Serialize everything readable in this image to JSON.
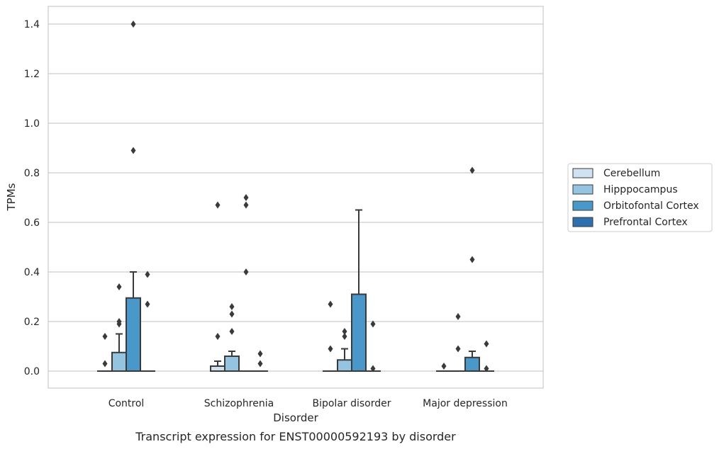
{
  "chart_data": {
    "type": "box",
    "caption": "Transcript expression for ENST00000592193 by disorder",
    "xlabel": "Disorder",
    "ylabel": "TPMs",
    "ylim": [
      -0.07,
      1.47
    ],
    "yticks": [
      0.0,
      0.2,
      0.4,
      0.6,
      0.8,
      1.0,
      1.2,
      1.4
    ],
    "ytick_labels": [
      "0.0",
      "0.2",
      "0.4",
      "0.6",
      "0.8",
      "1.0",
      "1.2",
      "1.4"
    ],
    "grid": "horizontal",
    "legend_placement": "right",
    "categories": [
      "Control",
      "Schizophrenia",
      "Bipolar disorder",
      "Major depression"
    ],
    "series": [
      {
        "name": "Cerebellum",
        "color": "#d0e1f2",
        "boxes": [
          {
            "q1": 0,
            "median": 0,
            "q3": 0,
            "whisker_low": 0,
            "whisker_high": 0,
            "outliers": [
              0.03,
              0.14
            ]
          },
          {
            "q1": 0,
            "median": 0,
            "q3": 0.02,
            "whisker_low": 0,
            "whisker_high": 0.04,
            "outliers": [
              0.14,
              0.67
            ]
          },
          {
            "q1": 0,
            "median": 0,
            "q3": 0,
            "whisker_low": 0,
            "whisker_high": 0,
            "outliers": [
              0.09,
              0.27
            ]
          },
          {
            "q1": 0,
            "median": 0,
            "q3": 0,
            "whisker_low": 0,
            "whisker_high": 0,
            "outliers": [
              0.02
            ]
          }
        ]
      },
      {
        "name": "Hipppocampus",
        "color": "#94c4df",
        "boxes": [
          {
            "q1": 0,
            "median": 0,
            "q3": 0.075,
            "whisker_low": 0,
            "whisker_high": 0.15,
            "outliers": [
              0.19,
              0.2,
              0.34
            ]
          },
          {
            "q1": 0,
            "median": 0,
            "q3": 0.06,
            "whisker_low": 0,
            "whisker_high": 0.08,
            "outliers": [
              0.16,
              0.23,
              0.26
            ]
          },
          {
            "q1": 0,
            "median": 0,
            "q3": 0.045,
            "whisker_low": 0,
            "whisker_high": 0.09,
            "outliers": [
              0.14,
              0.16
            ]
          },
          {
            "q1": 0,
            "median": 0,
            "q3": 0,
            "whisker_low": 0,
            "whisker_high": 0,
            "outliers": [
              0.09,
              0.22
            ]
          }
        ]
      },
      {
        "name": "Orbitofontal Cortex",
        "color": "#4a98c9",
        "boxes": [
          {
            "q1": 0,
            "median": 0,
            "q3": 0.295,
            "whisker_low": 0,
            "whisker_high": 0.4,
            "outliers": [
              0.89,
              1.4
            ]
          },
          {
            "q1": 0,
            "median": 0,
            "q3": 0,
            "whisker_low": 0,
            "whisker_high": 0,
            "outliers": [
              0.4,
              0.67,
              0.7
            ]
          },
          {
            "q1": 0,
            "median": 0,
            "q3": 0.31,
            "whisker_low": 0,
            "whisker_high": 0.65,
            "outliers": []
          },
          {
            "q1": 0,
            "median": 0,
            "q3": 0.055,
            "whisker_low": 0,
            "whisker_high": 0.08,
            "outliers": [
              0.45,
              0.81
            ]
          }
        ]
      },
      {
        "name": "Prefrontal Cortex",
        "color": "#2e6fae",
        "boxes": [
          {
            "q1": 0,
            "median": 0,
            "q3": 0,
            "whisker_low": 0,
            "whisker_high": 0,
            "outliers": [
              0.27,
              0.39
            ]
          },
          {
            "q1": 0,
            "median": 0,
            "q3": 0,
            "whisker_low": 0,
            "whisker_high": 0,
            "outliers": [
              0.03,
              0.07
            ]
          },
          {
            "q1": 0,
            "median": 0,
            "q3": 0,
            "whisker_low": 0,
            "whisker_high": 0,
            "outliers": [
              0.01,
              0.19
            ]
          },
          {
            "q1": 0,
            "median": 0,
            "q3": 0,
            "whisker_low": 0,
            "whisker_high": 0,
            "outliers": [
              0.01,
              0.11
            ]
          }
        ]
      }
    ],
    "colors": {
      "grid": "#cccccc",
      "frame": "#cccccc",
      "box_edge": "#3a3a3a",
      "outlier": "#3a3a3a"
    }
  }
}
